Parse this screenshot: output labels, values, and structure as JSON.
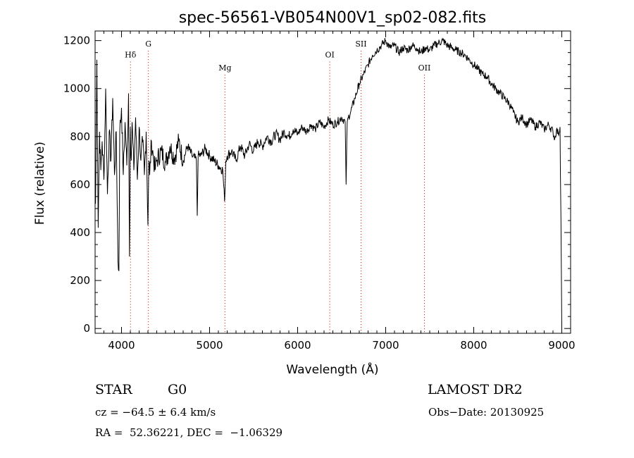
{
  "chart_data": {
    "type": "line",
    "title": "spec-56561-VB054N00V1_sp02-082.fits",
    "xlabel": "Wavelength (Å)",
    "ylabel": "Flux (relative)",
    "xlim": [
      3700,
      9100
    ],
    "ylim": [
      -20,
      1240
    ],
    "x_ticks": [
      4000,
      5000,
      6000,
      7000,
      8000,
      9000
    ],
    "y_ticks": [
      0,
      200,
      400,
      600,
      800,
      1000,
      1200
    ],
    "grid": false,
    "line_color": "#000000",
    "marker_color": "#cc0000",
    "spectral_lines": [
      {
        "label": "Hδ",
        "wavelength": 4102,
        "label_flux": 1130
      },
      {
        "label": "G",
        "wavelength": 4305,
        "label_flux": 1175
      },
      {
        "label": "Mg",
        "wavelength": 5175,
        "label_flux": 1075
      },
      {
        "label": "OI",
        "wavelength": 6365,
        "label_flux": 1130
      },
      {
        "label": "SII",
        "wavelength": 6720,
        "label_flux": 1175
      },
      {
        "label": "OII",
        "wavelength": 7440,
        "label_flux": 1075
      }
    ],
    "series": [
      {
        "x": [
          3705,
          3720,
          3735,
          3750,
          3765,
          3780,
          3800,
          3820,
          3840,
          3860,
          3880,
          3900,
          3920,
          3940,
          3960,
          3970,
          3980,
          4000,
          4020,
          4040,
          4060,
          4080,
          4090,
          4100,
          4110,
          4120,
          4140,
          4160,
          4180,
          4200,
          4220,
          4240,
          4260,
          4280,
          4300,
          4310,
          4320,
          4340,
          4360,
          4380,
          4400,
          4450,
          4500,
          4550,
          4600,
          4650,
          4700,
          4750,
          4800,
          4850,
          4860,
          4870,
          4900,
          4950,
          5000,
          5050,
          5100,
          5150,
          5170,
          5185,
          5200,
          5250,
          5300,
          5350,
          5400,
          5450,
          5500,
          5550,
          5600,
          5650,
          5700,
          5750,
          5800,
          5850,
          5900,
          5950,
          6000,
          6050,
          6100,
          6150,
          6200,
          6250,
          6300,
          6350,
          6400,
          6450,
          6500,
          6540,
          6550,
          6563,
          6575,
          6600,
          6650,
          6700,
          6750,
          6800,
          6850,
          6900,
          6950,
          7000,
          7050,
          7100,
          7150,
          7200,
          7250,
          7300,
          7350,
          7400,
          7450,
          7500,
          7550,
          7600,
          7650,
          7700,
          7750,
          7800,
          7850,
          7900,
          7950,
          8000,
          8050,
          8100,
          8150,
          8200,
          8250,
          8300,
          8350,
          8400,
          8450,
          8500,
          8550,
          8600,
          8650,
          8700,
          8750,
          8800,
          8850,
          8900,
          8920,
          8940,
          8960,
          8980,
          8990,
          9000
        ],
        "y": [
          520,
          1120,
          420,
          820,
          660,
          780,
          620,
          1000,
          560,
          820,
          700,
          960,
          640,
          820,
          280,
          240,
          820,
          920,
          640,
          860,
          680,
          980,
          300,
          840,
          700,
          860,
          660,
          880,
          620,
          840,
          700,
          780,
          640,
          820,
          430,
          700,
          640,
          780,
          720,
          660,
          700,
          740,
          690,
          760,
          710,
          780,
          700,
          760,
          720,
          700,
          470,
          720,
          720,
          750,
          720,
          700,
          680,
          660,
          530,
          700,
          720,
          740,
          700,
          760,
          720,
          770,
          740,
          780,
          760,
          800,
          780,
          810,
          790,
          820,
          800,
          830,
          810,
          840,
          820,
          850,
          830,
          860,
          840,
          870,
          850,
          860,
          880,
          860,
          600,
          860,
          880,
          900,
          960,
          1020,
          1060,
          1100,
          1140,
          1160,
          1180,
          1200,
          1170,
          1180,
          1150,
          1170,
          1160,
          1180,
          1170,
          1150,
          1170,
          1160,
          1180,
          1190,
          1200,
          1180,
          1170,
          1160,
          1150,
          1140,
          1120,
          1100,
          1080,
          1060,
          1050,
          1020,
          1000,
          980,
          960,
          940,
          900,
          860,
          880,
          850,
          870,
          840,
          860,
          830,
          850,
          820,
          790,
          830,
          810,
          840,
          460,
          0
        ]
      }
    ]
  },
  "footer": {
    "object_type": "STAR",
    "subclass": "G0",
    "survey": "LAMOST DR2",
    "cz": "cz = −64.5 ± 6.4 km/s",
    "obs_date": "Obs−Date: 20130925",
    "coords": "RA =  52.36221, DEC =  −1.06329"
  }
}
